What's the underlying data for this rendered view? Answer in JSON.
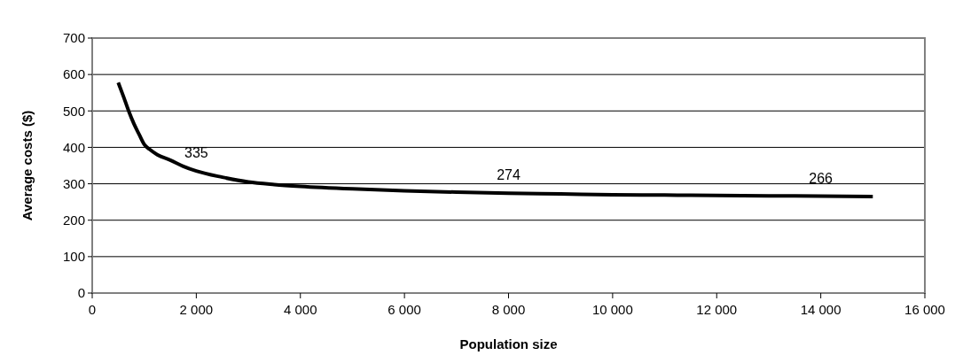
{
  "chart_data": {
    "type": "line",
    "xlabel": "Population size",
    "ylabel": "Average costs ($)",
    "x": [
      500,
      600,
      700,
      800,
      900,
      1000,
      1100,
      1250,
      1500,
      1750,
      2000,
      2500,
      3000,
      3500,
      4000,
      5000,
      6000,
      7000,
      8000,
      9000,
      10000,
      11000,
      12000,
      13000,
      14000,
      15000
    ],
    "series": [
      {
        "color": "#000000",
        "values": [
          578,
          540,
          500,
          465,
          436,
          408,
          395,
          380,
          365,
          348,
          335,
          318,
          305,
          298,
          293,
          286,
          281,
          277,
          274,
          272,
          270,
          269,
          268,
          267,
          266,
          265
        ]
      }
    ],
    "xlim": [
      0,
      16000
    ],
    "xticks": [
      {
        "value": 0,
        "label": "0"
      },
      {
        "value": 2000,
        "label": "2 000"
      },
      {
        "value": 4000,
        "label": "4 000"
      },
      {
        "value": 6000,
        "label": "6 000"
      },
      {
        "value": 8000,
        "label": "8 000"
      },
      {
        "value": 10000,
        "label": "10 000"
      },
      {
        "value": 12000,
        "label": "12 000"
      },
      {
        "value": 14000,
        "label": "14 000"
      },
      {
        "value": 16000,
        "label": "16 000"
      }
    ],
    "ylim": [
      0,
      700
    ],
    "yticks": [
      0,
      100,
      200,
      300,
      400,
      500,
      600,
      700
    ],
    "grid": "y",
    "marker": "none",
    "line_style": "solid",
    "annotations": [
      {
        "text": "335",
        "x": 2000,
        "y": 335
      },
      {
        "text": "274",
        "x": 8000,
        "y": 274
      },
      {
        "text": "266",
        "x": 14000,
        "y": 266
      }
    ]
  }
}
